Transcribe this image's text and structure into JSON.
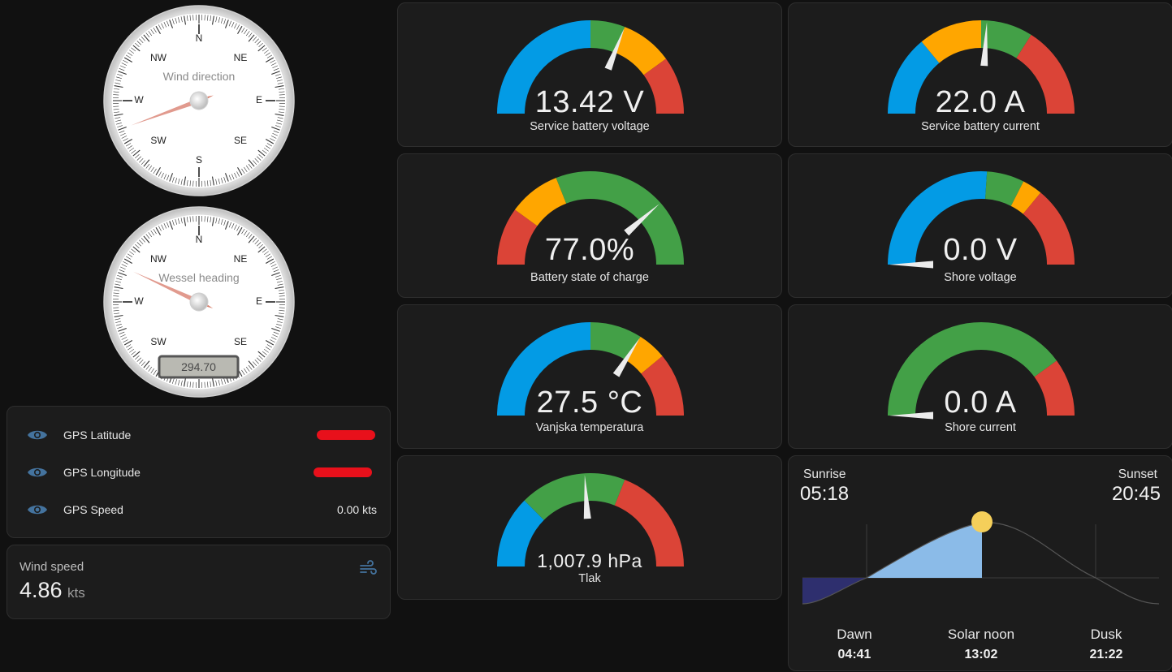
{
  "compass": {
    "wind": {
      "title": "Wind direction",
      "cardinals": [
        "N",
        "NE",
        "E",
        "SE",
        "S",
        "SW",
        "W",
        "NW"
      ],
      "needle_deg": 250
    },
    "heading": {
      "title": "Wessel heading",
      "cardinals": [
        "N",
        "NE",
        "E",
        "SE",
        "SW",
        "W",
        "NW"
      ],
      "readout": "294.70",
      "needle_deg": 294.7
    }
  },
  "gps": {
    "rows": [
      {
        "label": "GPS Latitude",
        "value": ""
      },
      {
        "label": "GPS Longitude",
        "value": ""
      },
      {
        "label": "GPS Speed",
        "value": "0.00 kts"
      }
    ]
  },
  "wind_speed": {
    "label": "Wind speed",
    "value": "4.86",
    "unit": "kts",
    "icon": "wind-icon"
  },
  "gauges": {
    "service_voltage": {
      "value": "13.42 V",
      "name": "Service battery voltage",
      "fraction": 0.62
    },
    "service_current": {
      "value": "22.0 A",
      "name": "Service battery current",
      "fraction": 0.52
    },
    "soc": {
      "value": "77.0%",
      "name": "Battery state of charge",
      "fraction": 0.77
    },
    "shore_voltage": {
      "value": "0.0 V",
      "name": "Shore voltage",
      "fraction": 0.0
    },
    "temperature": {
      "value": "27.5 °C",
      "name": "Vanjska temperatura",
      "fraction": 0.68
    },
    "shore_current": {
      "value": "0.0 A",
      "name": "Shore current",
      "fraction": 0.0
    },
    "pressure": {
      "value": "1,007.9 hPa",
      "name": "Tlak",
      "fraction": 0.48
    }
  },
  "colors": {
    "blue": "#039be5",
    "green": "#43a047",
    "yellow": "#ffa600",
    "red": "#db4437",
    "sun": "#f5cf5a",
    "day_fill": "#8bbbe8",
    "night_fill": "#2e2f6e"
  },
  "sun": {
    "sunrise_label": "Sunrise",
    "sunrise": "05:18",
    "sunset_label": "Sunset",
    "sunset": "20:45",
    "dawn_label": "Dawn",
    "dawn": "04:41",
    "noon_label": "Solar noon",
    "noon": "13:02",
    "dusk_label": "Dusk",
    "dusk": "21:22"
  }
}
